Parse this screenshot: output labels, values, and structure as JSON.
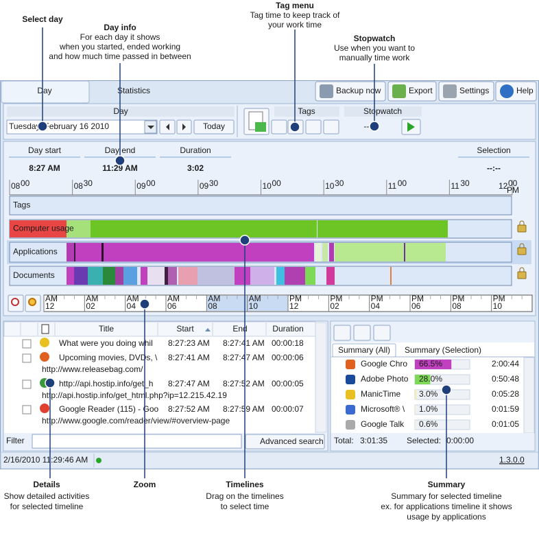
{
  "callouts": [
    {
      "title": "Select day"
    },
    {
      "title": "Day info",
      "lines": [
        "For each day it shows",
        "when you started, ended working",
        "and how much time passed in between"
      ]
    },
    {
      "title": "Tag menu",
      "lines": [
        "Tag time to keep track of",
        "your work time"
      ]
    },
    {
      "title": "Stopwatch",
      "lines": [
        "Use when you want to",
        "manually time work"
      ]
    },
    {
      "title": "Details",
      "lines": [
        "Show detailed activities",
        "for selected timeline"
      ]
    },
    {
      "title": "Zoom"
    },
    {
      "title": "Timelines",
      "lines": [
        "Drag on the timelines",
        "to select time"
      ]
    },
    {
      "title": "Summary",
      "lines": [
        "Summary for selected timeline",
        "ex. for applications timeline it shows",
        "usage by applications"
      ]
    }
  ],
  "tabs": [
    "Day",
    "Statistics"
  ],
  "toolbar": [
    "Backup now",
    "Export",
    "Settings",
    "Help"
  ],
  "day_group": {
    "header": "Day",
    "date": "Tuesday, February 16 2010",
    "today": "Today"
  },
  "tags_group": {
    "header": "Tags"
  },
  "stopwatch": {
    "header": "Stopwatch",
    "time": "--:--"
  },
  "stats": [
    {
      "label": "Day start",
      "value": "8:27 AM"
    },
    {
      "label": "Day end",
      "value": "11:29 AM"
    },
    {
      "label": "Duration",
      "value": "3:02"
    },
    {
      "label": "Selection",
      "value": "--:--"
    }
  ],
  "time_axis": [
    {
      "hour": "08",
      "minute": "00"
    },
    {
      "hour": "08",
      "minute": "30"
    },
    {
      "hour": "09",
      "minute": "00"
    },
    {
      "hour": "09",
      "minute": "30"
    },
    {
      "hour": "10",
      "minute": "00"
    },
    {
      "hour": "10",
      "minute": "30"
    },
    {
      "hour": "11",
      "minute": "00"
    },
    {
      "hour": "11",
      "minute": "30"
    },
    {
      "hour": "12",
      "minute": "00",
      "suffix": "PM"
    }
  ],
  "timelines": [
    "Tags",
    "Computer usage",
    "Applications",
    "Documents"
  ],
  "zoom_axis": [
    {
      "period": "AM",
      "hour": "12"
    },
    {
      "period": "AM",
      "hour": "02"
    },
    {
      "period": "AM",
      "hour": "04"
    },
    {
      "period": "AM",
      "hour": "06"
    },
    {
      "period": "AM",
      "hour": "08"
    },
    {
      "period": "AM",
      "hour": "10"
    },
    {
      "period": "PM",
      "hour": "12"
    },
    {
      "period": "PM",
      "hour": "02"
    },
    {
      "period": "PM",
      "hour": "04"
    },
    {
      "period": "PM",
      "hour": "06"
    },
    {
      "period": "PM",
      "hour": "08"
    },
    {
      "period": "PM",
      "hour": "10"
    }
  ],
  "details": {
    "columns": [
      "Title",
      "Start",
      "End",
      "Duration"
    ],
    "rows": [
      {
        "title": "What were you doing whil",
        "start": "8:27:23 AM",
        "end": "8:27:41 AM",
        "duration": "00:00:18"
      },
      {
        "title": "Upcoming movies, DVDs, \\",
        "start": "8:27:41 AM",
        "end": "8:27:47 AM",
        "duration": "00:00:06",
        "url": "http://www.releasebag.com/"
      },
      {
        "title": "http://api.hostip.info/get_h",
        "start": "8:27:47 AM",
        "end": "8:27:52 AM",
        "duration": "00:00:05",
        "url": "http://api.hostip.info/get_html.php?ip=12.215.42.19"
      },
      {
        "title": "Google Reader (115) - Goo",
        "start": "8:27:52 AM",
        "end": "8:27:59 AM",
        "duration": "00:00:07",
        "url": "http://www.google.com/reader/view/#overview-page"
      }
    ],
    "filter": "Filter",
    "search": "Advanced search"
  },
  "summary": {
    "tabs": [
      "Summary (All)",
      "Summary (Selection)"
    ],
    "rows": [
      {
        "name": "Google Chro",
        "percent": 66.5,
        "percent_label": "66.5%",
        "time": "2:00:44"
      },
      {
        "name": "Adobe Photo",
        "percent": 28.0,
        "percent_label": "28.0%",
        "time": "0:50:48"
      },
      {
        "name": "ManicTime",
        "percent": 3.0,
        "percent_label": "3.0%",
        "time": "0:05:28"
      },
      {
        "name": "Microsoft® \\",
        "percent": 1.0,
        "percent_label": "1.0%",
        "time": "0:01:59"
      },
      {
        "name": "Google Talk",
        "percent": 0.6,
        "percent_label": "0.6%",
        "time": "0:01:05"
      }
    ],
    "total_label": "Total:",
    "total": "3:01:35",
    "selected_label": "Selected:",
    "selected": "0:00:00"
  },
  "status": {
    "datetime": "2/16/2010 11:29:46 AM",
    "version": "1.3.0.0"
  }
}
